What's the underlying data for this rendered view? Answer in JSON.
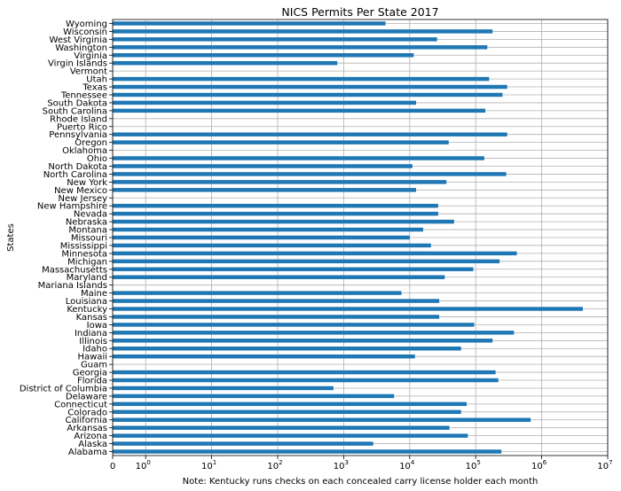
{
  "chart_data": {
    "type": "bar",
    "orientation": "horizontal",
    "title": "NICS Permits Per State 2017",
    "xlabel": "Note: Kentucky runs checks on each concealed carry license holder each month",
    "ylabel": "States",
    "xscale": "symlog",
    "xlim": [
      0,
      10000000
    ],
    "x_ticks": [
      {
        "value": 0,
        "label": "0"
      },
      {
        "value": 1,
        "label": "10",
        "exp": "0"
      },
      {
        "value": 10,
        "label": "10",
        "exp": "1"
      },
      {
        "value": 100,
        "label": "10",
        "exp": "2"
      },
      {
        "value": 1000,
        "label": "10",
        "exp": "3"
      },
      {
        "value": 10000,
        "label": "10",
        "exp": "4"
      },
      {
        "value": 100000,
        "label": "10",
        "exp": "5"
      },
      {
        "value": 1000000,
        "label": "10",
        "exp": "6"
      },
      {
        "value": 10000000,
        "label": "10",
        "exp": "7"
      }
    ],
    "grid": true,
    "categories": [
      "Alabama",
      "Alaska",
      "Arizona",
      "Arkansas",
      "California",
      "Colorado",
      "Connecticut",
      "Delaware",
      "District of Columbia",
      "Florida",
      "Georgia",
      "Guam",
      "Hawaii",
      "Idaho",
      "Illinois",
      "Indiana",
      "Iowa",
      "Kansas",
      "Kentucky",
      "Louisiana",
      "Maine",
      "Mariana Islands",
      "Maryland",
      "Massachusetts",
      "Michigan",
      "Minnesota",
      "Mississippi",
      "Missouri",
      "Montana",
      "Nebraska",
      "Nevada",
      "New Hampshire",
      "New Jersey",
      "New Mexico",
      "New York",
      "North Carolina",
      "North Dakota",
      "Ohio",
      "Oklahoma",
      "Oregon",
      "Pennsylvania",
      "Puerto Rico",
      "Rhode Island",
      "South Carolina",
      "South Dakota",
      "Tennessee",
      "Texas",
      "Utah",
      "Vermont",
      "Virgin Islands",
      "Virginia",
      "Washington",
      "West Virginia",
      "Wisconsin",
      "Wyoming"
    ],
    "values": [
      245000,
      2800,
      76000,
      40000,
      680000,
      60000,
      73000,
      5800,
      700,
      220000,
      200000,
      0,
      12000,
      60000,
      180000,
      380000,
      95000,
      28000,
      4200000,
      28000,
      7500,
      0,
      34000,
      92000,
      230000,
      420000,
      21000,
      10000,
      16000,
      47000,
      27000,
      27000,
      0,
      12500,
      36000,
      290000,
      11000,
      135000,
      0,
      39000,
      300000,
      0,
      0,
      140000,
      12500,
      255000,
      300000,
      160000,
      0,
      800,
      11500,
      150000,
      26000,
      180000,
      4300
    ]
  }
}
